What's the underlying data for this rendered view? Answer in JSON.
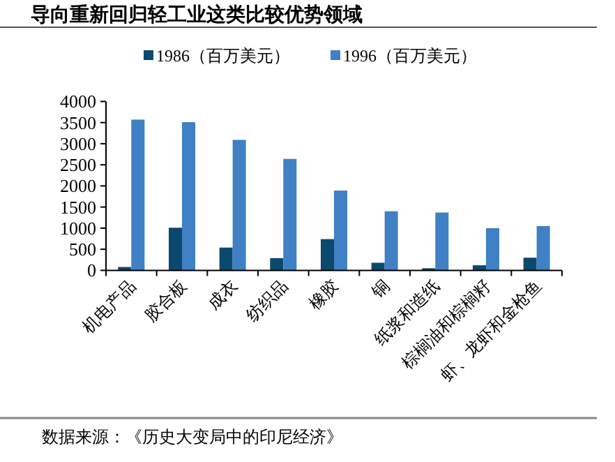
{
  "chart_data": {
    "type": "bar",
    "title": "导向重新回归轻工业这类比较优势领域",
    "categories": [
      "机电产品",
      "胶合板",
      "成衣",
      "纺织品",
      "橡胶",
      "铜",
      "纸浆和造纸",
      "棕榈油和棕榈籽",
      "虾、龙虾和金枪鱼"
    ],
    "series": [
      {
        "name": "1986（百万美元）",
        "color": "#0b4a6e",
        "values": [
          80,
          1010,
          540,
          290,
          740,
          180,
          50,
          120,
          300
        ]
      },
      {
        "name": "1996（百万美元）",
        "color": "#4080c4",
        "values": [
          3570,
          3510,
          3090,
          2640,
          1890,
          1400,
          1370,
          1000,
          1050
        ]
      }
    ],
    "ylim": [
      0,
      4000
    ],
    "yticks": [
      0,
      500,
      1000,
      1500,
      2000,
      2500,
      3000,
      3500,
      4000
    ],
    "grid": false,
    "legend": "top",
    "annotations": [
      "数据来源：《历史大变局中的印尼经济》"
    ]
  }
}
